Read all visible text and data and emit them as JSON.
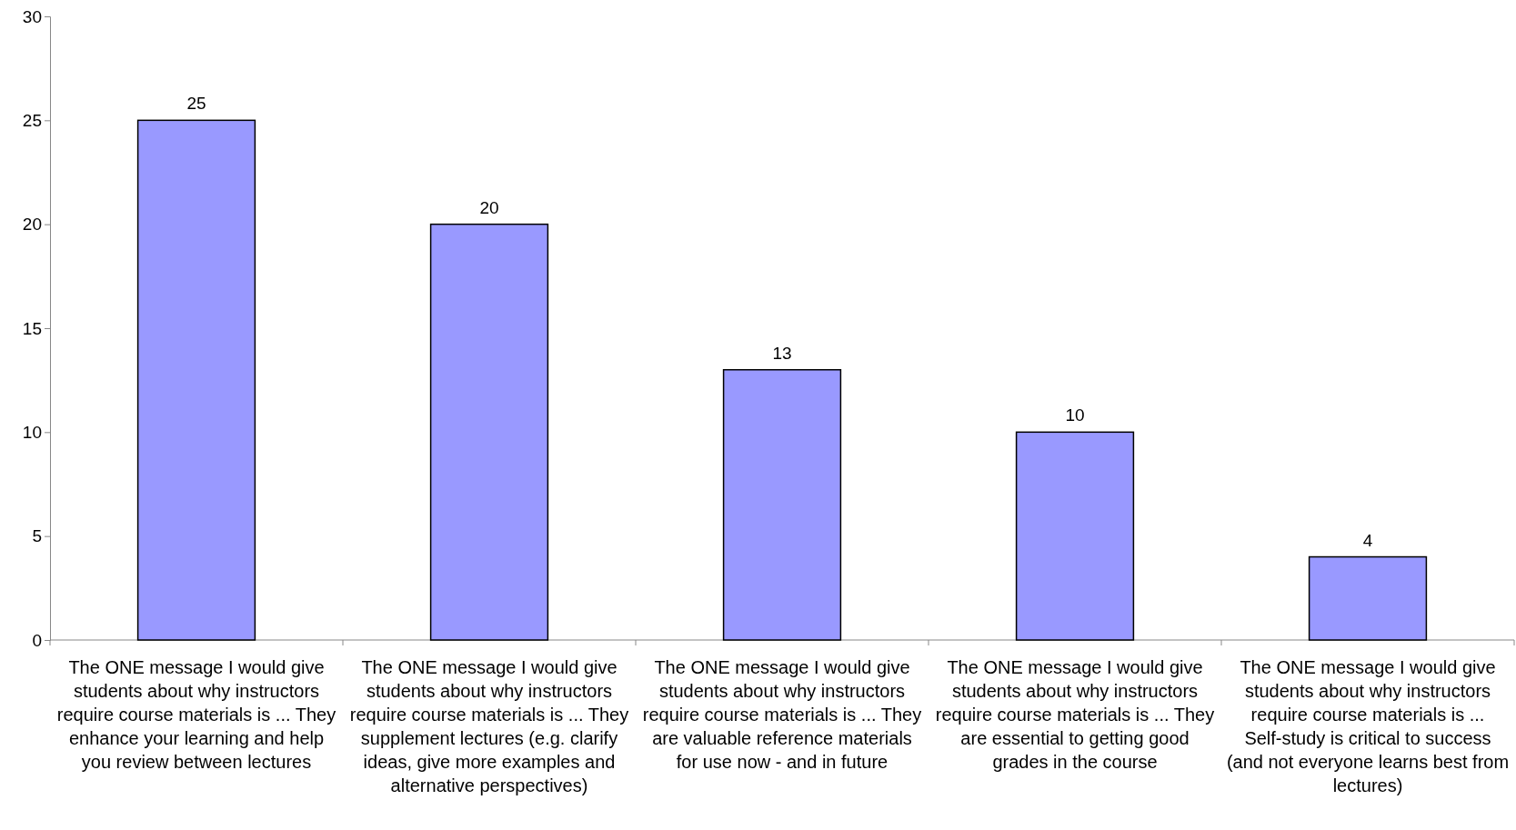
{
  "chart_data": {
    "type": "bar",
    "categories": [
      "The ONE message I would give students about why instructors require course materials is ... They enhance your learning and help you review between lectures",
      "The ONE message I would give students about why instructors require course materials is ... They supplement lectures (e.g. clarify ideas, give more examples and alternative perspectives)",
      "The ONE message I would give students about why instructors require course materials is ... They are valuable reference materials for use now - and in future",
      "The ONE message I would give students about why instructors require course materials is ... They are essential to getting good grades in the course",
      "The ONE message I would give students about why instructors require course materials is ... Self-study is critical to success (and not everyone learns best from lectures)"
    ],
    "values": [
      25,
      20,
      13,
      10,
      4
    ],
    "color": "#9999ff",
    "ylim": [
      0,
      30
    ],
    "yticks": [
      0,
      5,
      10,
      15,
      20,
      25,
      30
    ],
    "data_labels": true
  }
}
